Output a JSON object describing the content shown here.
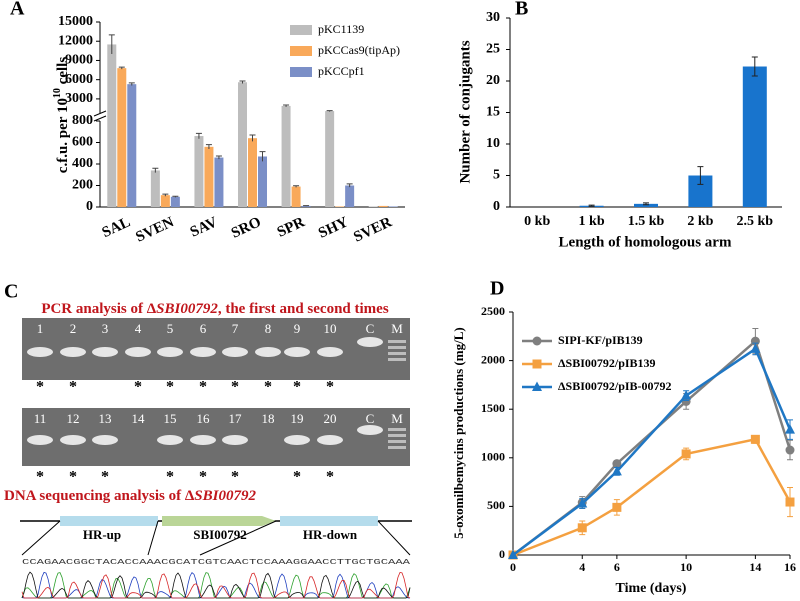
{
  "chart_data": [
    {
      "type": "bar",
      "panel": "A",
      "ylabel": [
        "c.f.u. per 10",
        "10",
        " cells"
      ],
      "categories": [
        "SAL",
        "SVEN",
        "SAV",
        "SRO",
        "SPR",
        "SHY",
        "SVER"
      ],
      "series": [
        {
          "name": "pKC1139",
          "color": "#bdbdbd",
          "values": [
            11500,
            340,
            660,
            5600,
            1900,
            1100,
            5
          ],
          "errors": [
            1500,
            20,
            25,
            200,
            150,
            80,
            0
          ]
        },
        {
          "name": "pKCCas9(tipAp)",
          "color": "#f9a95a",
          "values": [
            7800,
            110,
            560,
            640,
            190,
            5,
            10
          ],
          "errors": [
            150,
            10,
            20,
            30,
            8,
            0,
            0
          ]
        },
        {
          "name": "pKCCpf1",
          "color": "#7b8fc7",
          "values": [
            5300,
            95,
            460,
            470,
            10,
            200,
            5
          ],
          "errors": [
            200,
            5,
            15,
            45,
            3,
            15,
            0
          ]
        }
      ],
      "ylim": [
        0,
        800
      ],
      "yticks": [
        0,
        200,
        400,
        600,
        800
      ],
      "y_break": {
        "ylim": [
          800,
          15000
        ],
        "yticks": [
          3000,
          6000,
          9000,
          12000,
          15000
        ]
      }
    },
    {
      "type": "bar",
      "panel": "B",
      "xlabel": "Length of homologous arm",
      "ylabel": "Number of conjugants",
      "categories": [
        "0 kb",
        "1 kb",
        "1.5 kb",
        "2 kb",
        "2.5 kb"
      ],
      "values": [
        0,
        0.2,
        0.5,
        5,
        22.3
      ],
      "errors": [
        0,
        0.1,
        0.15,
        1.4,
        1.5
      ],
      "color": "#1874cd",
      "ylim": [
        0,
        30
      ],
      "yticks": [
        0,
        5,
        10,
        15,
        20,
        25,
        30
      ]
    },
    {
      "type": "line",
      "panel": "D",
      "xlabel": "Time (days)",
      "ylabel": "5-oxomilbemycins productions (mg/L)",
      "x": [
        0,
        4,
        6,
        10,
        14,
        16
      ],
      "series": [
        {
          "name": "SIPI-KF/pIB139",
          "color": "#7f7f7f",
          "marker": "circle",
          "values": [
            0,
            540,
            940,
            1580,
            2200,
            1080
          ],
          "errors": [
            0,
            60,
            30,
            80,
            130,
            100
          ]
        },
        {
          "name": "ΔSBI00792/pIB139",
          "color": "#f4a040",
          "marker": "square",
          "values": [
            0,
            280,
            490,
            1040,
            1190,
            545
          ],
          "errors": [
            0,
            70,
            80,
            60,
            40,
            150
          ]
        },
        {
          "name": "ΔSBI00792/pIB-00792",
          "color": "#1f77c4",
          "marker": "triangle",
          "values": [
            0,
            530,
            860,
            1640,
            2120,
            1290
          ],
          "errors": [
            0,
            50,
            40,
            50,
            60,
            100
          ]
        }
      ],
      "xlim": [
        0,
        16
      ],
      "xticks": [
        0,
        4,
        6,
        10,
        14,
        16
      ],
      "ylim": [
        0,
        2500
      ],
      "yticks": [
        0,
        500,
        1000,
        1500,
        2000,
        2500
      ]
    }
  ],
  "panel_c": {
    "label": "C",
    "heading1": [
      "PCR analysis of Δ",
      "SBI00792",
      ", the first and second times"
    ],
    "gel1_lanes": [
      {
        "label": "1",
        "mark": "*"
      },
      {
        "label": "2",
        "mark": "*"
      },
      {
        "label": "3"
      },
      {
        "label": "4",
        "mark": "*"
      },
      {
        "label": "5",
        "mark": "*"
      },
      {
        "label": "6",
        "mark": "*"
      },
      {
        "label": "7",
        "mark": "*"
      },
      {
        "label": "8",
        "mark": "*"
      },
      {
        "label": "9",
        "mark": "*"
      },
      {
        "label": "10",
        "mark": "*"
      },
      {
        "label": "C"
      },
      {
        "label": "M"
      }
    ],
    "gel2_lanes": [
      {
        "label": "11",
        "mark": "*"
      },
      {
        "label": "12",
        "mark": "*"
      },
      {
        "label": "13",
        "mark": "*"
      },
      {
        "label": "14"
      },
      {
        "label": "15",
        "mark": "*"
      },
      {
        "label": "16",
        "mark": "*"
      },
      {
        "label": "17",
        "mark": "*"
      },
      {
        "label": "18"
      },
      {
        "label": "19",
        "mark": "*"
      },
      {
        "label": "20",
        "mark": "*"
      },
      {
        "label": "C"
      },
      {
        "label": "M"
      }
    ],
    "heading2": [
      "DNA sequencing analysis of Δ",
      "SBI00792"
    ],
    "segments": [
      "HR-up",
      "SBI00792",
      "HR-down"
    ],
    "sequence": "CCAGAACGGCTACACCAAACGCATCGTCAACTCCAAAGGAACCTTGCTGCAAA"
  }
}
